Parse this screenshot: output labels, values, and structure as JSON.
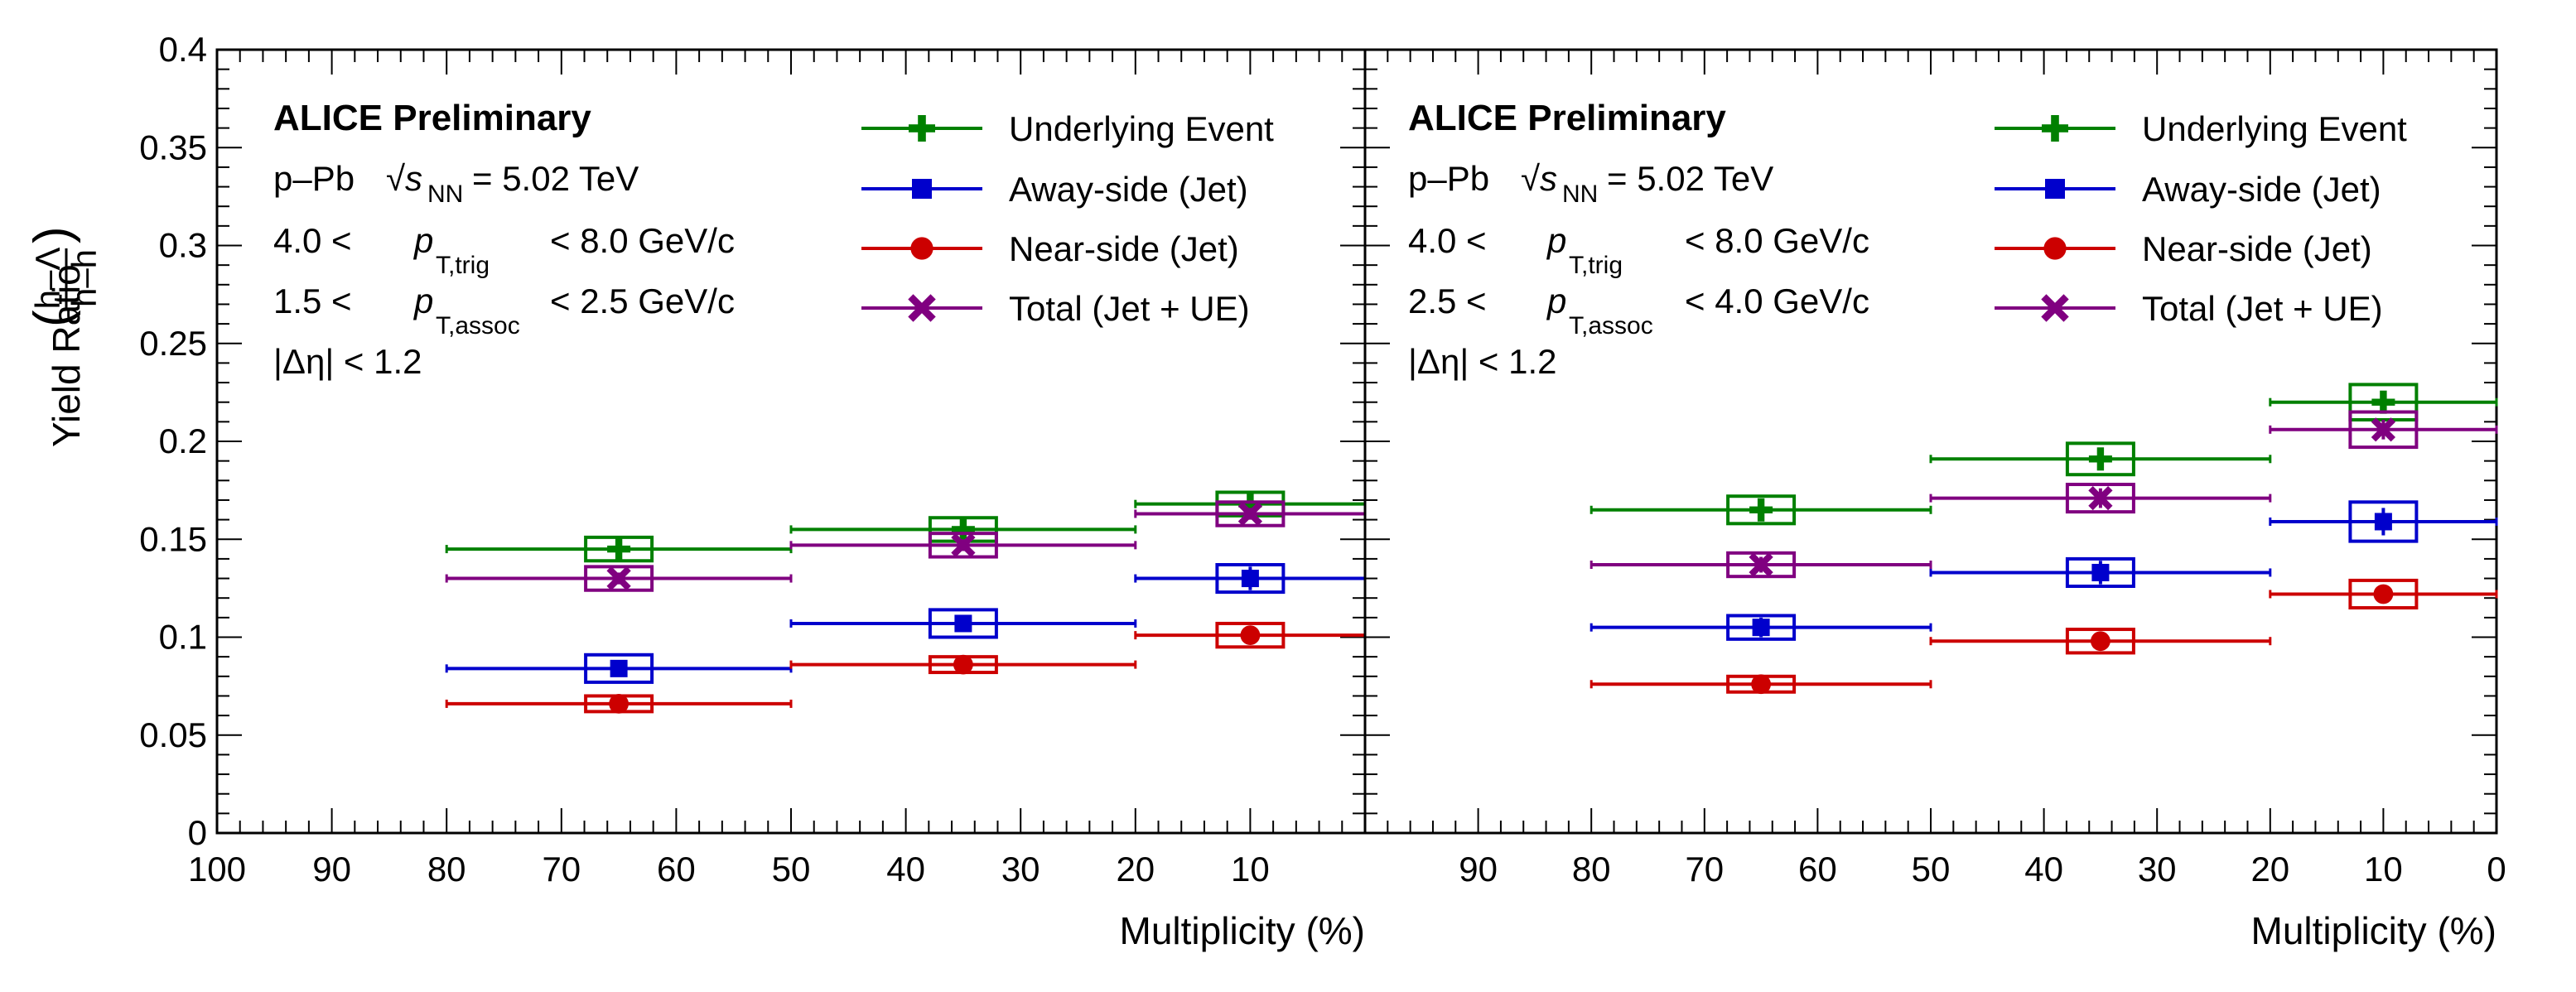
{
  "y_axis": {
    "title": "Yield Ratio",
    "ratio_numerator": "h–Λ",
    "ratio_denominator": "h–h"
  },
  "legend": [
    {
      "key": "ue",
      "label": "Underlying Event",
      "color": "#008000",
      "marker": "plus"
    },
    {
      "key": "away",
      "label": "Away-side (Jet)",
      "color": "#0000cc",
      "marker": "square"
    },
    {
      "key": "near",
      "label": "Near-side (Jet)",
      "color": "#cc0000",
      "marker": "circle"
    },
    {
      "key": "total",
      "label": "Total (Jet + UE)",
      "color": "#800080",
      "marker": "cross"
    }
  ],
  "panels": [
    {
      "experiment": "ALICE Preliminary",
      "system": "p–Pb",
      "sqrt_label": "√s",
      "sqrt_sub": "NN",
      "energy": "= 5.02 TeV",
      "trig_low": "4.0 <",
      "trig_var": "p",
      "trig_sub": "T,trig",
      "trig_high": "< 8.0 GeV/c",
      "assoc_low": "1.5 <",
      "assoc_var": "p",
      "assoc_sub": "T,assoc",
      "assoc_high": "< 2.5 GeV/c",
      "eta_cut": "|Δη| < 1.2",
      "x_title": "Multiplicity (%)"
    },
    {
      "experiment": "ALICE Preliminary",
      "system": "p–Pb",
      "sqrt_label": "√s",
      "sqrt_sub": "NN",
      "energy": "= 5.02 TeV",
      "trig_low": "4.0 <",
      "trig_var": "p",
      "trig_sub": "T,trig",
      "trig_high": "< 8.0 GeV/c",
      "assoc_low": "2.5 <",
      "assoc_var": "p",
      "assoc_sub": "T,assoc",
      "assoc_high": "< 4.0 GeV/c",
      "eta_cut": "|Δη| < 1.2",
      "x_title": "Multiplicity (%)"
    }
  ],
  "chart_data": [
    {
      "type": "scatter",
      "xlabel": "Multiplicity (%)",
      "ylabel": "Yield Ratio (h–Λ)/(h–h)",
      "xlim": [
        100,
        0
      ],
      "ylim": [
        0,
        0.4
      ],
      "x_reversed": true,
      "x_ticks": [
        "100",
        "90",
        "80",
        "70",
        "60",
        "50",
        "40",
        "30",
        "20",
        "10"
      ],
      "y_ticks": [
        "0",
        "0.05",
        "0.1",
        "0.15",
        "0.2",
        "0.25",
        "0.3",
        "0.35",
        "0.4"
      ],
      "bins": [
        {
          "x": 65,
          "low": 50,
          "high": 80
        },
        {
          "x": 35,
          "low": 20,
          "high": 50
        },
        {
          "x": 10,
          "low": 0,
          "high": 20
        }
      ],
      "series": [
        {
          "name": "Underlying Event",
          "y": [
            0.145,
            0.155,
            0.168
          ],
          "stat_err": [
            0.004,
            0.004,
            0.004
          ],
          "sys_err": [
            0.006,
            0.006,
            0.006
          ]
        },
        {
          "name": "Away-side (Jet)",
          "y": [
            0.084,
            0.107,
            0.13
          ],
          "stat_err": [
            0.004,
            0.004,
            0.006
          ],
          "sys_err": [
            0.007,
            0.007,
            0.007
          ]
        },
        {
          "name": "Near-side (Jet)",
          "y": [
            0.066,
            0.086,
            0.101
          ],
          "stat_err": [
            0.002,
            0.002,
            0.002
          ],
          "sys_err": [
            0.004,
            0.004,
            0.006
          ]
        },
        {
          "name": "Total (Jet + UE)",
          "y": [
            0.13,
            0.147,
            0.163
          ],
          "stat_err": [
            0.003,
            0.003,
            0.003
          ],
          "sys_err": [
            0.006,
            0.006,
            0.006
          ]
        }
      ]
    },
    {
      "type": "scatter",
      "xlabel": "Multiplicity (%)",
      "ylabel": "Yield Ratio (h–Λ)/(h–h)",
      "xlim": [
        100,
        0
      ],
      "ylim": [
        0,
        0.4
      ],
      "x_reversed": true,
      "x_ticks": [
        "90",
        "80",
        "70",
        "60",
        "50",
        "40",
        "30",
        "20",
        "10",
        "0"
      ],
      "y_ticks": [],
      "bins": [
        {
          "x": 65,
          "low": 50,
          "high": 80
        },
        {
          "x": 35,
          "low": 20,
          "high": 50
        },
        {
          "x": 10,
          "low": 0,
          "high": 20
        }
      ],
      "series": [
        {
          "name": "Underlying Event",
          "y": [
            0.165,
            0.191,
            0.22
          ],
          "stat_err": [
            0.005,
            0.005,
            0.005
          ],
          "sys_err": [
            0.007,
            0.008,
            0.009
          ]
        },
        {
          "name": "Away-side (Jet)",
          "y": [
            0.105,
            0.133,
            0.159
          ],
          "stat_err": [
            0.005,
            0.006,
            0.007
          ],
          "sys_err": [
            0.006,
            0.007,
            0.01
          ]
        },
        {
          "name": "Near-side (Jet)",
          "y": [
            0.076,
            0.098,
            0.122
          ],
          "stat_err": [
            0.002,
            0.003,
            0.003
          ],
          "sys_err": [
            0.004,
            0.006,
            0.007
          ]
        },
        {
          "name": "Total (Jet + UE)",
          "y": [
            0.137,
            0.171,
            0.206
          ],
          "stat_err": [
            0.004,
            0.005,
            0.005
          ],
          "sys_err": [
            0.006,
            0.007,
            0.009
          ]
        }
      ]
    }
  ]
}
